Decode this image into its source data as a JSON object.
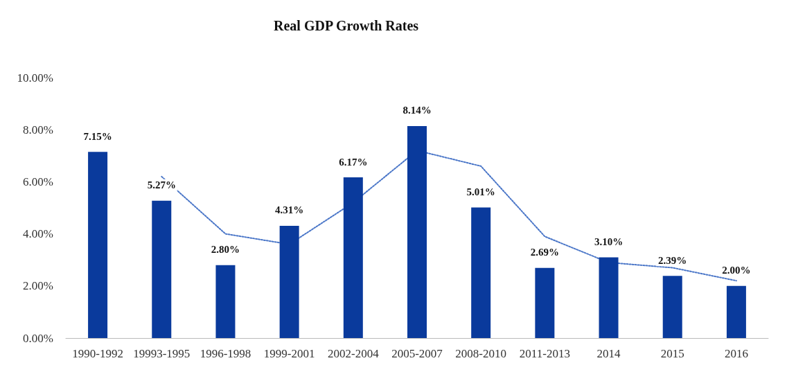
{
  "chart_data": {
    "type": "bar",
    "title": "Real GDP Growth Rates",
    "categories": [
      "1990-1992",
      "19993-1995",
      "1996-1998",
      "1999-2001",
      "2002-2004",
      "2005-2007",
      "2008-2010",
      "2011-2013",
      "2014",
      "2015",
      "2016"
    ],
    "series": [
      {
        "color": "#0a3a9c",
        "values": [
          7.15,
          5.27,
          2.8,
          4.31,
          6.17,
          8.14,
          5.01,
          2.69,
          3.1,
          2.39,
          2.0
        ],
        "value_labels": [
          "7.15%",
          "5.27%",
          "2.80%",
          "4.31%",
          "6.17%",
          "8.14%",
          "5.01%",
          "2.69%",
          "3.10%",
          "2.39%",
          "2.00%"
        ]
      },
      {
        "type": "line",
        "color": "#4a76c8",
        "line_style": "dotted",
        "marker": "none",
        "values": [
          null,
          6.2,
          4.0,
          3.6,
          5.2,
          7.2,
          6.6,
          3.9,
          2.9,
          2.7,
          2.2
        ]
      }
    ],
    "ylim": [
      0,
      10
    ],
    "yticks": [
      {
        "value": 0,
        "label": "0.00%"
      },
      {
        "value": 2,
        "label": "2.00%"
      },
      {
        "value": 4,
        "label": "4.00%"
      },
      {
        "value": 6,
        "label": "6.00%"
      },
      {
        "value": 8,
        "label": "8.00%"
      },
      {
        "value": 10,
        "label": "10.00%"
      }
    ],
    "grid": false
  }
}
